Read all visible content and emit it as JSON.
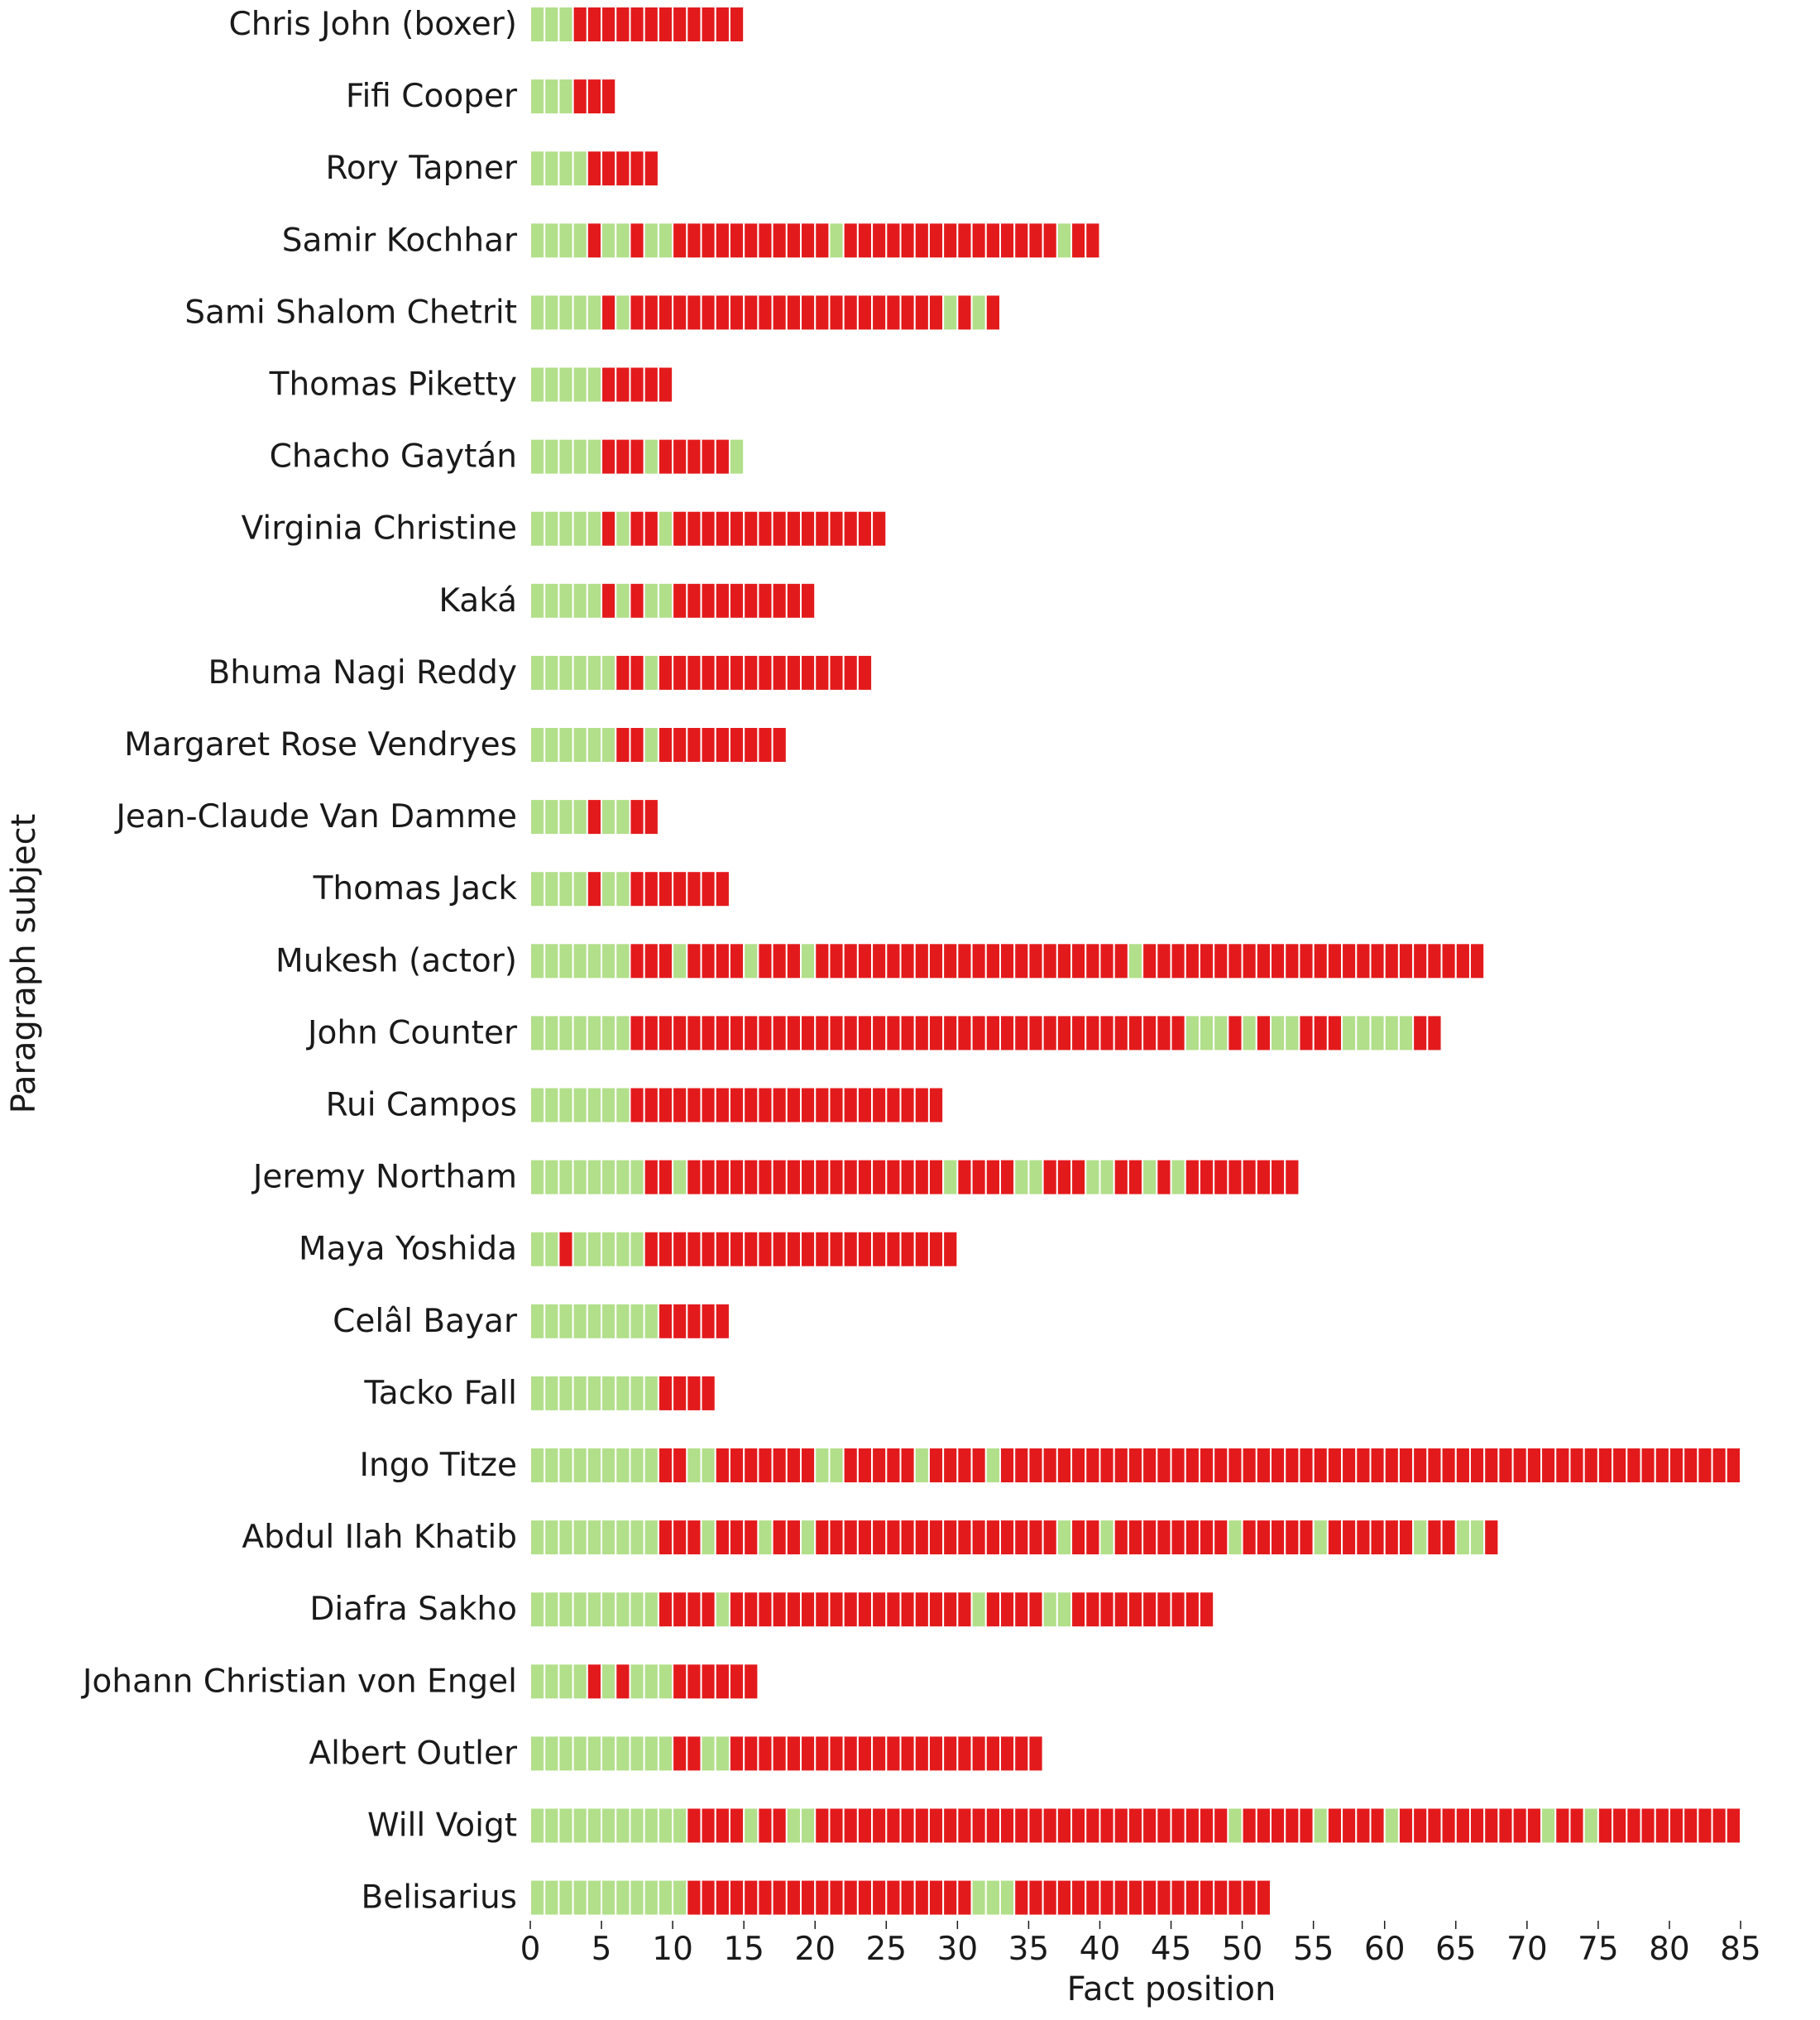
{
  "chart_data": {
    "type": "bar",
    "orientation": "horizontal",
    "xlabel": "Fact position",
    "ylabel": "Paragraph subject",
    "xlim": [
      0,
      85
    ],
    "xticks": [
      0,
      5,
      10,
      15,
      20,
      25,
      30,
      35,
      40,
      45,
      50,
      55,
      60,
      65,
      70,
      75,
      80,
      85
    ],
    "grid": false,
    "colors": {
      "green": "#b2df8a",
      "red": "#e31a1c"
    },
    "rows": [
      {
        "label": "Chris John (boxer)",
        "segments": [
          [
            3,
            "green"
          ],
          [
            12,
            "red"
          ]
        ]
      },
      {
        "label": "Fifi Cooper",
        "segments": [
          [
            3,
            "green"
          ],
          [
            3,
            "red"
          ]
        ]
      },
      {
        "label": "Rory Tapner",
        "segments": [
          [
            4,
            "green"
          ],
          [
            5,
            "red"
          ]
        ]
      },
      {
        "label": "Samir Kochhar",
        "segments": [
          [
            4,
            "green"
          ],
          [
            1,
            "red"
          ],
          [
            2,
            "green"
          ],
          [
            1,
            "red"
          ],
          [
            2,
            "green"
          ],
          [
            11,
            "red"
          ],
          [
            1,
            "green"
          ],
          [
            15,
            "red"
          ],
          [
            1,
            "green"
          ],
          [
            2,
            "red"
          ]
        ]
      },
      {
        "label": "Sami Shalom Chetrit",
        "segments": [
          [
            5,
            "green"
          ],
          [
            1,
            "red"
          ],
          [
            1,
            "green"
          ],
          [
            22,
            "red"
          ],
          [
            1,
            "green"
          ],
          [
            1,
            "red"
          ],
          [
            1,
            "green"
          ],
          [
            1,
            "red"
          ]
        ]
      },
      {
        "label": "Thomas Piketty",
        "segments": [
          [
            5,
            "green"
          ],
          [
            5,
            "red"
          ]
        ]
      },
      {
        "label": "Chacho Gaytán",
        "segments": [
          [
            5,
            "green"
          ],
          [
            3,
            "red"
          ],
          [
            1,
            "green"
          ],
          [
            5,
            "red"
          ],
          [
            1,
            "green"
          ]
        ]
      },
      {
        "label": "Virginia Christine",
        "segments": [
          [
            5,
            "green"
          ],
          [
            1,
            "red"
          ],
          [
            1,
            "green"
          ],
          [
            2,
            "red"
          ],
          [
            1,
            "green"
          ],
          [
            15,
            "red"
          ]
        ]
      },
      {
        "label": "Kaká",
        "segments": [
          [
            5,
            "green"
          ],
          [
            1,
            "red"
          ],
          [
            1,
            "green"
          ],
          [
            1,
            "red"
          ],
          [
            2,
            "green"
          ],
          [
            10,
            "red"
          ]
        ]
      },
      {
        "label": "Bhuma Nagi Reddy",
        "segments": [
          [
            6,
            "green"
          ],
          [
            2,
            "red"
          ],
          [
            1,
            "green"
          ],
          [
            15,
            "red"
          ]
        ]
      },
      {
        "label": "Margaret Rose Vendryes",
        "segments": [
          [
            6,
            "green"
          ],
          [
            2,
            "red"
          ],
          [
            1,
            "green"
          ],
          [
            9,
            "red"
          ]
        ]
      },
      {
        "label": "Jean-Claude Van Damme",
        "segments": [
          [
            4,
            "green"
          ],
          [
            1,
            "red"
          ],
          [
            2,
            "green"
          ],
          [
            2,
            "red"
          ]
        ]
      },
      {
        "label": "Thomas Jack",
        "segments": [
          [
            4,
            "green"
          ],
          [
            1,
            "red"
          ],
          [
            2,
            "green"
          ],
          [
            7,
            "red"
          ]
        ]
      },
      {
        "label": "Mukesh (actor)",
        "segments": [
          [
            7,
            "green"
          ],
          [
            3,
            "red"
          ],
          [
            1,
            "green"
          ],
          [
            4,
            "red"
          ],
          [
            1,
            "green"
          ],
          [
            3,
            "red"
          ],
          [
            1,
            "green"
          ],
          [
            22,
            "red"
          ],
          [
            1,
            "green"
          ],
          [
            24,
            "red"
          ]
        ]
      },
      {
        "label": "John Counter",
        "segments": [
          [
            7,
            "green"
          ],
          [
            39,
            "red"
          ],
          [
            3,
            "green"
          ],
          [
            1,
            "red"
          ],
          [
            1,
            "green"
          ],
          [
            1,
            "red"
          ],
          [
            2,
            "green"
          ],
          [
            3,
            "red"
          ],
          [
            5,
            "green"
          ],
          [
            2,
            "red"
          ]
        ]
      },
      {
        "label": "Rui Campos",
        "segments": [
          [
            7,
            "green"
          ],
          [
            22,
            "red"
          ]
        ]
      },
      {
        "label": "Jeremy Northam",
        "segments": [
          [
            8,
            "green"
          ],
          [
            2,
            "red"
          ],
          [
            1,
            "green"
          ],
          [
            18,
            "red"
          ],
          [
            1,
            "green"
          ],
          [
            4,
            "red"
          ],
          [
            2,
            "green"
          ],
          [
            3,
            "red"
          ],
          [
            2,
            "green"
          ],
          [
            2,
            "red"
          ],
          [
            1,
            "green"
          ],
          [
            1,
            "red"
          ],
          [
            1,
            "green"
          ],
          [
            8,
            "red"
          ]
        ]
      },
      {
        "label": "Maya Yoshida",
        "segments": [
          [
            2,
            "green"
          ],
          [
            1,
            "red"
          ],
          [
            5,
            "green"
          ],
          [
            22,
            "red"
          ]
        ]
      },
      {
        "label": "Celâl Bayar",
        "segments": [
          [
            9,
            "green"
          ],
          [
            5,
            "red"
          ]
        ]
      },
      {
        "label": "Tacko Fall",
        "segments": [
          [
            9,
            "green"
          ],
          [
            4,
            "red"
          ]
        ]
      },
      {
        "label": "Ingo Titze",
        "segments": [
          [
            9,
            "green"
          ],
          [
            2,
            "red"
          ],
          [
            2,
            "green"
          ],
          [
            7,
            "red"
          ],
          [
            2,
            "green"
          ],
          [
            5,
            "red"
          ],
          [
            1,
            "green"
          ],
          [
            4,
            "red"
          ],
          [
            1,
            "green"
          ],
          [
            52,
            "red"
          ]
        ]
      },
      {
        "label": "Abdul Ilah Khatib",
        "segments": [
          [
            9,
            "green"
          ],
          [
            3,
            "red"
          ],
          [
            1,
            "green"
          ],
          [
            3,
            "red"
          ],
          [
            1,
            "green"
          ],
          [
            2,
            "red"
          ],
          [
            1,
            "green"
          ],
          [
            17,
            "red"
          ],
          [
            1,
            "green"
          ],
          [
            2,
            "red"
          ],
          [
            1,
            "green"
          ],
          [
            8,
            "red"
          ],
          [
            1,
            "green"
          ],
          [
            5,
            "red"
          ],
          [
            1,
            "green"
          ],
          [
            6,
            "red"
          ],
          [
            1,
            "green"
          ],
          [
            2,
            "red"
          ],
          [
            2,
            "green"
          ],
          [
            1,
            "red"
          ]
        ]
      },
      {
        "label": "Diafra Sakho",
        "segments": [
          [
            9,
            "green"
          ],
          [
            4,
            "red"
          ],
          [
            1,
            "green"
          ],
          [
            17,
            "red"
          ],
          [
            1,
            "green"
          ],
          [
            4,
            "red"
          ],
          [
            2,
            "green"
          ],
          [
            10,
            "red"
          ]
        ]
      },
      {
        "label": "Johann Christian von Engel",
        "segments": [
          [
            4,
            "green"
          ],
          [
            1,
            "red"
          ],
          [
            1,
            "green"
          ],
          [
            1,
            "red"
          ],
          [
            3,
            "green"
          ],
          [
            6,
            "red"
          ]
        ]
      },
      {
        "label": "Albert Outler",
        "segments": [
          [
            10,
            "green"
          ],
          [
            2,
            "red"
          ],
          [
            2,
            "green"
          ],
          [
            22,
            "red"
          ]
        ]
      },
      {
        "label": "Will Voigt",
        "segments": [
          [
            11,
            "green"
          ],
          [
            4,
            "red"
          ],
          [
            1,
            "green"
          ],
          [
            2,
            "red"
          ],
          [
            2,
            "green"
          ],
          [
            29,
            "red"
          ],
          [
            1,
            "green"
          ],
          [
            5,
            "red"
          ],
          [
            1,
            "green"
          ],
          [
            4,
            "red"
          ],
          [
            1,
            "green"
          ],
          [
            10,
            "red"
          ],
          [
            1,
            "green"
          ],
          [
            2,
            "red"
          ],
          [
            1,
            "green"
          ],
          [
            10,
            "red"
          ]
        ]
      },
      {
        "label": "Belisarius",
        "segments": [
          [
            11,
            "green"
          ],
          [
            20,
            "red"
          ],
          [
            3,
            "green"
          ],
          [
            18,
            "red"
          ]
        ]
      }
    ]
  }
}
